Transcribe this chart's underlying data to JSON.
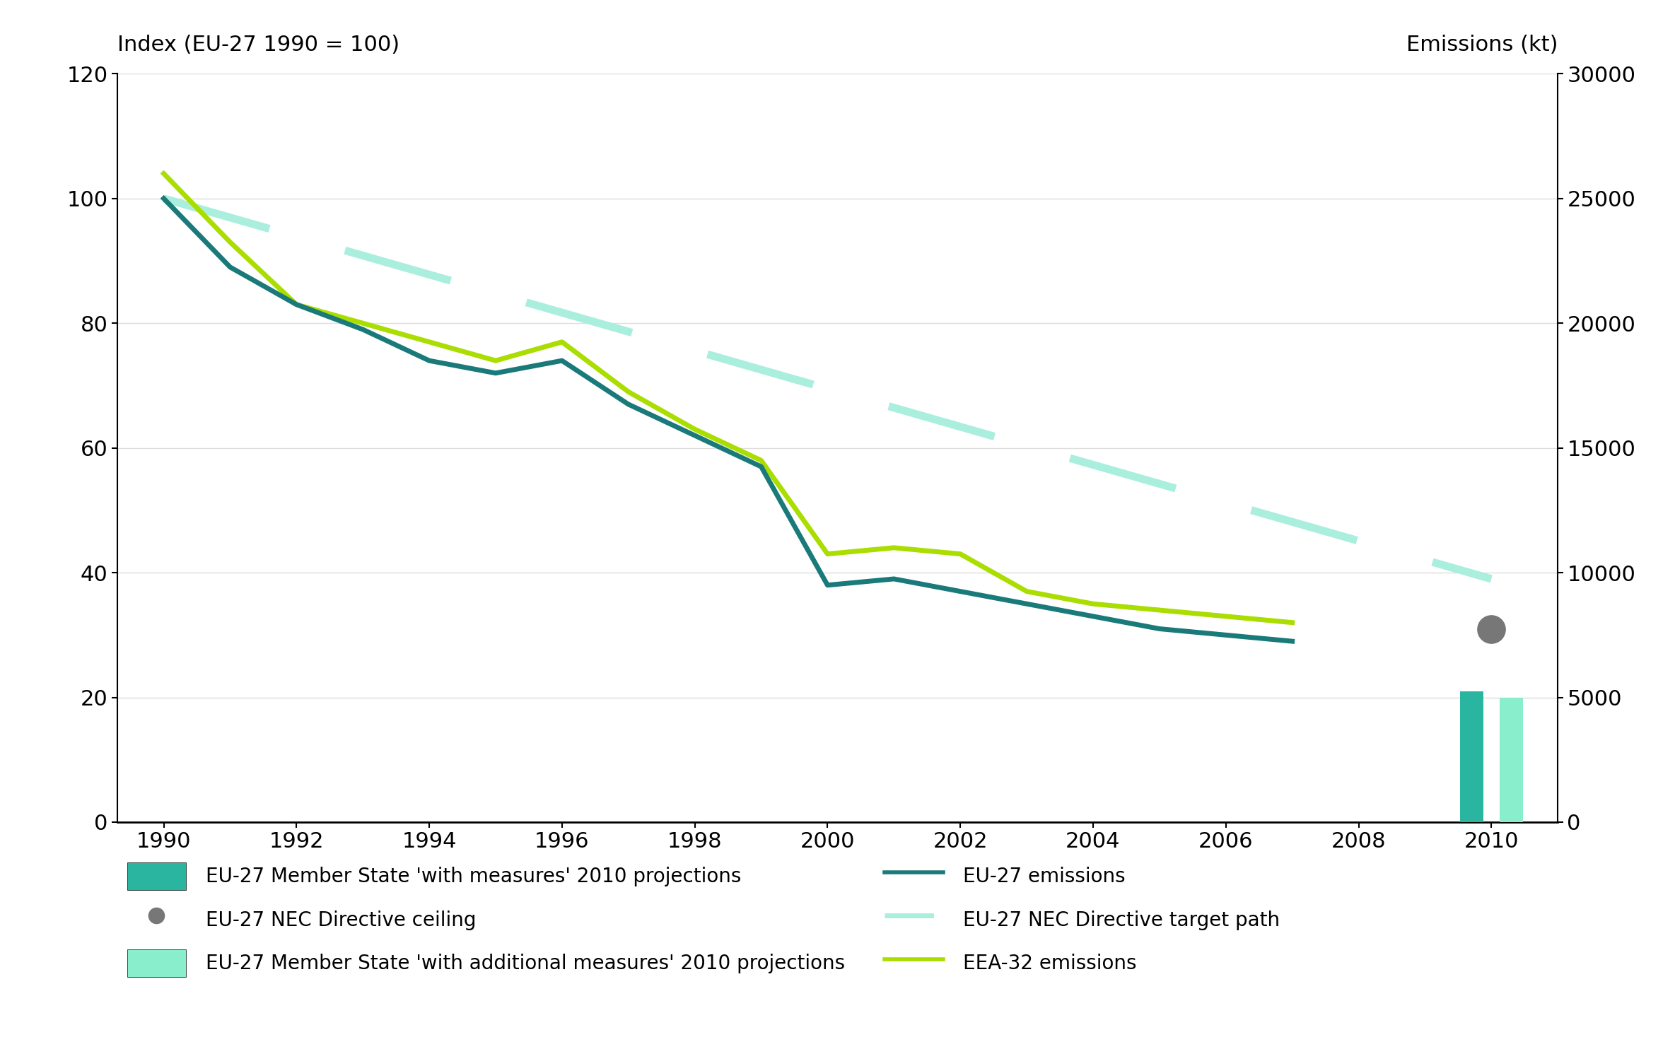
{
  "title_left": "Index (EU-27 1990 = 100)",
  "title_right": "Emissions (kt)",
  "bg_color": "#ffffff",
  "plot_bg_color": "#ffffff",
  "eu27_years": [
    1990,
    1991,
    1992,
    1993,
    1994,
    1995,
    1996,
    1997,
    1998,
    1999,
    2000,
    2001,
    2002,
    2003,
    2004,
    2005,
    2006,
    2007
  ],
  "eu27_index": [
    100,
    89,
    83,
    79,
    74,
    72,
    74,
    67,
    62,
    57,
    38,
    39,
    37,
    35,
    33,
    31,
    30,
    29
  ],
  "eea32_years": [
    1990,
    1991,
    1992,
    1993,
    1994,
    1995,
    1996,
    1997,
    1998,
    1999,
    2000,
    2001,
    2002,
    2003,
    2004,
    2005,
    2006,
    2007
  ],
  "eea32_index": [
    104,
    93,
    83,
    80,
    77,
    74,
    77,
    69,
    63,
    58,
    43,
    44,
    43,
    37,
    35,
    34,
    33,
    32
  ],
  "nec_target_years": [
    1990,
    2010
  ],
  "nec_target_index": [
    100,
    39
  ],
  "nec_ceiling_year": 2010,
  "nec_ceiling_index": 31,
  "bar_with_measures_year": 2009.7,
  "bar_with_measures_index": 21,
  "bar_with_add_measures_year": 2010.3,
  "bar_with_add_measures_index": 20,
  "eu27_color": "#1a7a7a",
  "eea32_color": "#aadd00",
  "nec_target_color": "#aaeedd",
  "nec_ceiling_color": "#777777",
  "bar_with_measures_color": "#2ab5a0",
  "bar_with_add_measures_color": "#88eecc",
  "ylim_left": [
    0,
    120
  ],
  "ylim_right": [
    0,
    30000
  ],
  "xticks": [
    1990,
    1992,
    1994,
    1996,
    1998,
    2000,
    2002,
    2004,
    2006,
    2008,
    2010
  ],
  "yticks_left": [
    0,
    20,
    40,
    60,
    80,
    100,
    120
  ],
  "yticks_right": [
    0,
    5000,
    10000,
    15000,
    20000,
    25000,
    30000
  ]
}
